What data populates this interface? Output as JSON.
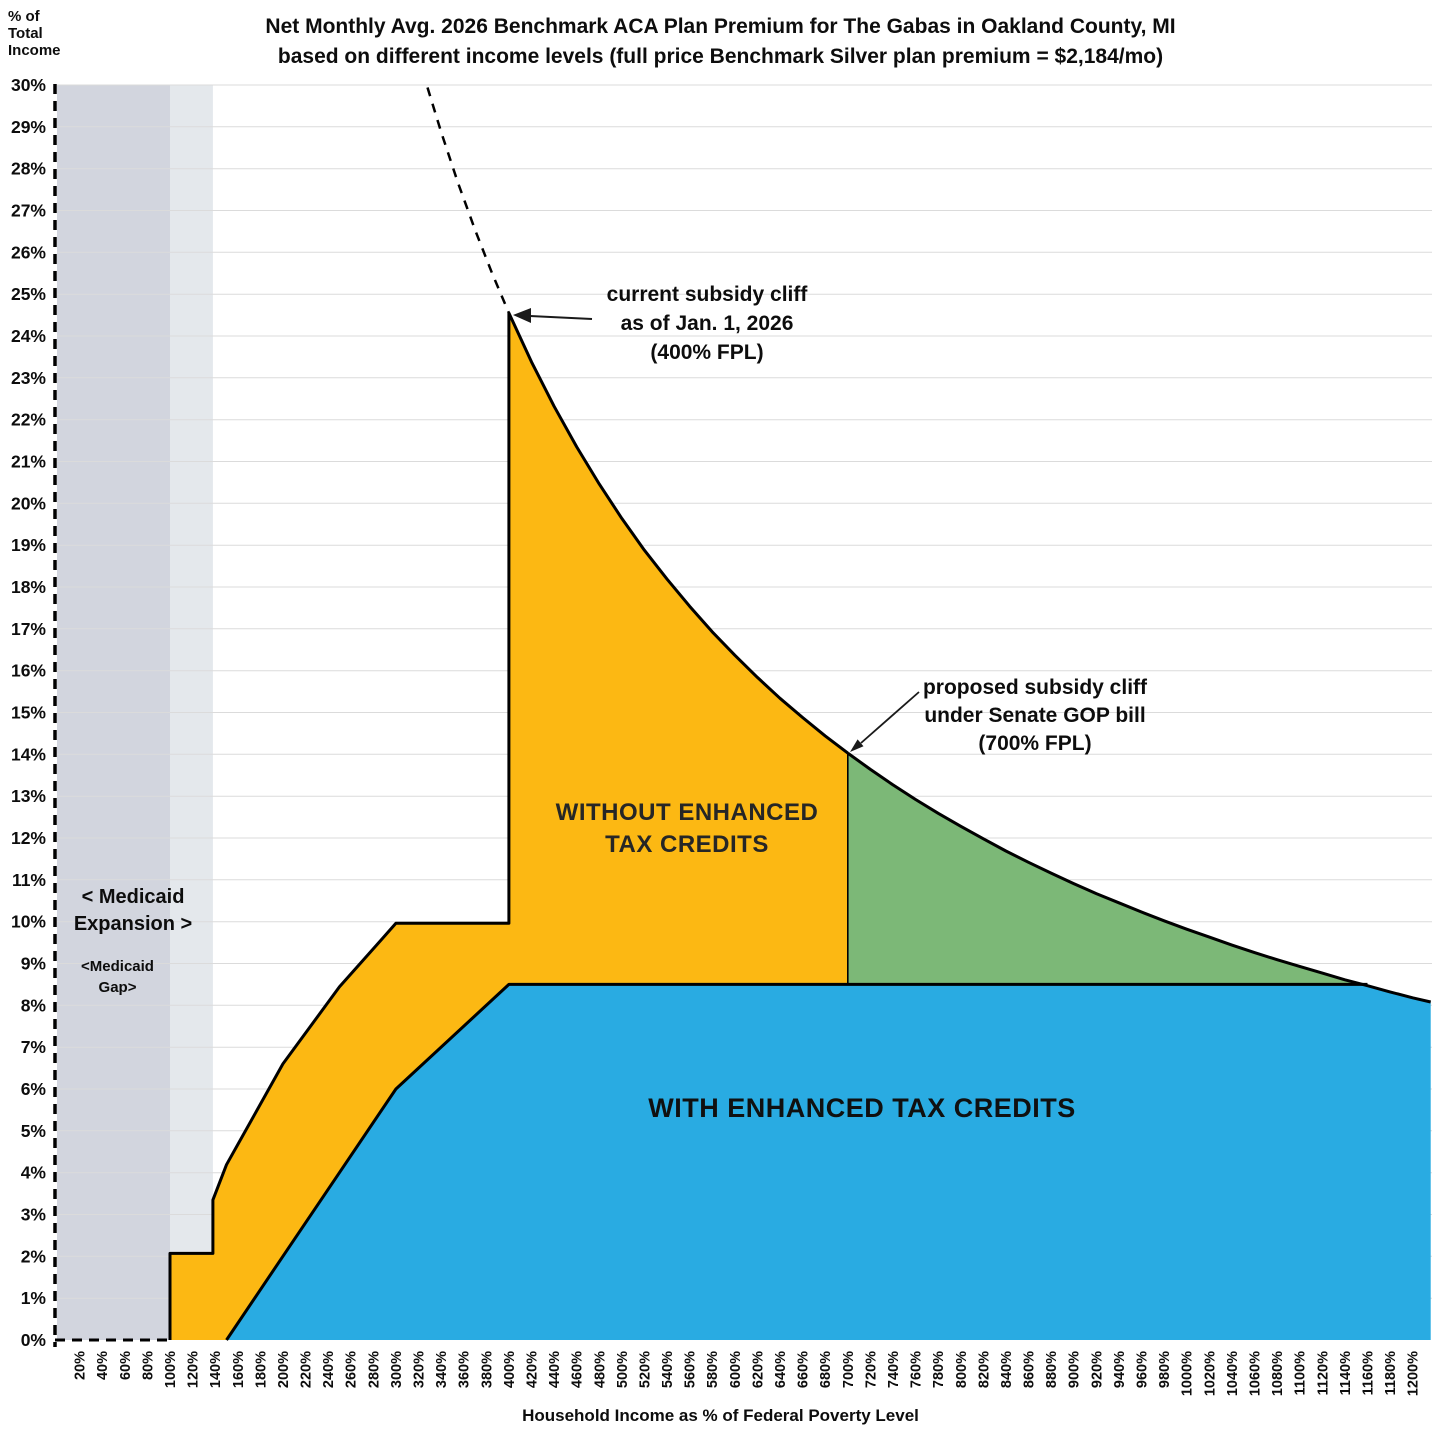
{
  "title": {
    "line1": "Net Monthly Avg. 2026 Benchmark ACA Plan Premium for The Gabas in Oakland County, MI",
    "line2": "based on different income levels (full price Benchmark Silver plan premium = $2,184/mo)"
  },
  "labels": {
    "y_axis_title": "% of\nTotal\nIncome",
    "x_axis_title": "Household Income as % of Federal Poverty Level",
    "medicaid_expansion": "< Medicaid\nExpansion >",
    "medicaid_gap": "<Medicaid\nGap>",
    "without_credits": "WITHOUT ENHANCED\nTAX CREDITS",
    "with_credits": "WITH ENHANCED TAX CREDITS",
    "annotation_current_cliff": "current subsidy cliff\nas of Jan. 1, 2026\n(400% FPL)",
    "annotation_proposed_cliff": "proposed subsidy cliff\nunder Senate GOP bill\n(700% FPL)"
  },
  "chart_data": {
    "type": "area",
    "title": "Net Monthly Avg. 2026 Benchmark ACA Plan Premium for The Gabas in Oakland County, MI",
    "subtitle": "based on different income levels (full price Benchmark Silver plan premium = $2,184/mo)",
    "xlabel": "Household Income as % of Federal Poverty Level",
    "ylabel": "% of Total Income",
    "xlim_fpl_pct": [
      0,
      1220
    ],
    "ylim_pct": [
      0,
      30
    ],
    "x_ticks": {
      "min": 20,
      "max": 1200,
      "step": 20,
      "suffix": "%"
    },
    "y_ticks": {
      "min": 0,
      "max": 30,
      "step": 1,
      "suffix": "%"
    },
    "grid": true,
    "full_price_benchmark_premium": "$2,184/mo",
    "cliffs": {
      "current_fpl_pct": 400,
      "proposed_fpl_pct": 700
    },
    "bands": [
      {
        "name": "medicaid-expansion",
        "x": [
          0,
          100
        ],
        "color": "#D2D5DE"
      },
      {
        "name": "medicaid-gap",
        "x": [
          100,
          138
        ],
        "color": "#E4E8EC"
      }
    ],
    "series": [
      {
        "name": "without_enhanced_tax_credits_schedule",
        "points": [
          [
            100,
            0
          ],
          [
            100,
            2.07
          ],
          [
            138,
            2.07
          ],
          [
            138,
            3.35
          ],
          [
            150,
            4.19
          ],
          [
            200,
            6.6
          ],
          [
            250,
            8.44
          ],
          [
            300,
            9.96
          ],
          [
            400,
            9.96
          ]
        ]
      },
      {
        "name": "with_enhanced_tax_credits_schedule",
        "points": [
          [
            150,
            0
          ],
          [
            200,
            2
          ],
          [
            250,
            4
          ],
          [
            300,
            6
          ],
          [
            400,
            8.5
          ],
          [
            1160,
            8.5
          ]
        ]
      },
      {
        "name": "full_price_premium_pct_of_income",
        "points": [
          [
            328,
            29.94
          ],
          [
            340,
            28.88
          ],
          [
            355,
            27.66
          ],
          [
            370,
            26.54
          ],
          [
            385,
            25.51
          ],
          [
            400,
            24.55
          ],
          [
            420,
            23.38
          ],
          [
            440,
            22.32
          ],
          [
            460,
            21.35
          ],
          [
            480,
            20.46
          ],
          [
            500,
            19.64
          ],
          [
            520,
            18.88
          ],
          [
            540,
            18.19
          ],
          [
            560,
            17.54
          ],
          [
            580,
            16.93
          ],
          [
            600,
            16.37
          ],
          [
            620,
            15.84
          ],
          [
            640,
            15.34
          ],
          [
            660,
            14.88
          ],
          [
            680,
            14.44
          ],
          [
            700,
            14.03
          ],
          [
            720,
            13.64
          ],
          [
            740,
            13.27
          ],
          [
            760,
            12.92
          ],
          [
            780,
            12.59
          ],
          [
            800,
            12.28
          ],
          [
            820,
            11.98
          ],
          [
            840,
            11.69
          ],
          [
            860,
            11.42
          ],
          [
            880,
            11.16
          ],
          [
            900,
            10.91
          ],
          [
            920,
            10.67
          ],
          [
            940,
            10.45
          ],
          [
            960,
            10.23
          ],
          [
            980,
            10.02
          ],
          [
            1000,
            9.82
          ],
          [
            1020,
            9.63
          ],
          [
            1040,
            9.44
          ],
          [
            1060,
            9.26
          ],
          [
            1080,
            9.09
          ],
          [
            1100,
            8.93
          ],
          [
            1120,
            8.77
          ],
          [
            1140,
            8.61
          ],
          [
            1160,
            8.47
          ],
          [
            1180,
            8.32
          ],
          [
            1200,
            8.18
          ],
          [
            1216,
            8.08
          ]
        ]
      }
    ],
    "colors": {
      "without_area": "#FCB813",
      "with_area": "#29ABE2",
      "proposed_area": "#7CB877",
      "outline": "#000000",
      "grid": "#DBDBDB",
      "band_dark": "#D2D5DE",
      "band_light": "#E4E8EC",
      "text": "#0d0d0d"
    },
    "legend_position": "labels-inside-areas"
  }
}
